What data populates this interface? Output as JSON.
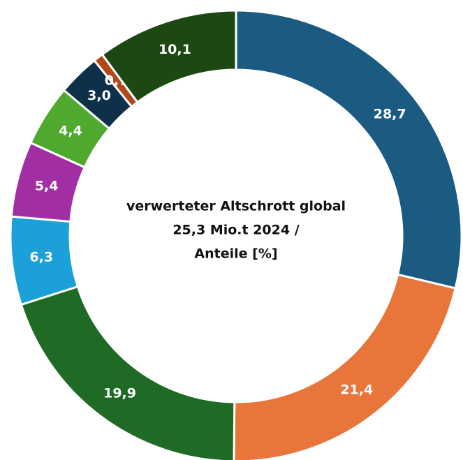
{
  "chart_data": {
    "type": "donut",
    "title_lines": [
      "verwerteter Altschrott global",
      "25,3 Mio.t 2024 /",
      "Anteile  [%]"
    ],
    "values": [
      28.7,
      21.4,
      19.9,
      6.3,
      5.4,
      4.4,
      3.0,
      0.7,
      10.1
    ],
    "value_labels": [
      "28,7",
      "21,4",
      "19,9",
      "6,3",
      "5,4",
      "4,4",
      "3,0",
      "0,7",
      "10,1"
    ],
    "colors": [
      "#1b5b82",
      "#e8753a",
      "#1f6a24",
      "#1ba0da",
      "#a22ea3",
      "#4fa92f",
      "#0e3149",
      "#b0491a",
      "#1b4813"
    ]
  }
}
